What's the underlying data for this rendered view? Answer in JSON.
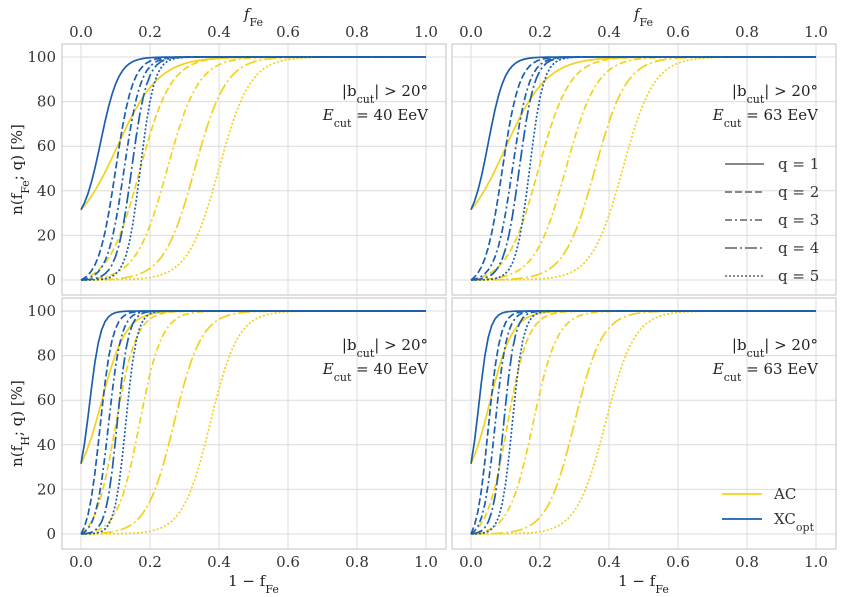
{
  "chart_data": {
    "type": "line",
    "x_label_bottom": "1 − f_Fe",
    "x_label_top": "f_Fe",
    "xlim": [
      0,
      1
    ],
    "ylim": [
      0,
      100
    ],
    "x_ticks": [
      "0.0",
      "0.2",
      "0.4",
      "0.6",
      "0.8",
      "1.0"
    ],
    "y_ticks": [
      "0",
      "20",
      "40",
      "60",
      "80",
      "100"
    ],
    "colors": {
      "AC": "#f2d21b",
      "XC_opt": "#1c5fad"
    },
    "line_styles": {
      "1": "solid",
      "2": "dashed",
      "3": "dashdot",
      "4": "longdashdot",
      "5": "dotted"
    },
    "legend_q": [
      "q = 1",
      "q = 2",
      "q = 3",
      "q = 4",
      "q = 5"
    ],
    "legend_methods": [
      "AC",
      "XC_opt"
    ],
    "panels": [
      {
        "position": "top-left",
        "ylabel": "n(f_Fe; q) [%]",
        "annotation": [
          "|b_cut| > 20°",
          "E_cut = 40 EeV"
        ],
        "series": [
          {
            "method": "XC_opt",
            "q": 1,
            "x50": 0.057,
            "width": 0.026,
            "y0": 31.5
          },
          {
            "method": "XC_opt",
            "q": 2,
            "x50": 0.1,
            "width": 0.025
          },
          {
            "method": "XC_opt",
            "q": 3,
            "x50": 0.125,
            "width": 0.024
          },
          {
            "method": "XC_opt",
            "q": 4,
            "x50": 0.147,
            "width": 0.022
          },
          {
            "method": "XC_opt",
            "q": 5,
            "x50": 0.172,
            "width": 0.02
          },
          {
            "method": "AC",
            "q": 1,
            "x50": 0.105,
            "width": 0.06,
            "y0": 31.5
          },
          {
            "method": "AC",
            "q": 2,
            "x50": 0.17,
            "width": 0.045
          },
          {
            "method": "AC",
            "q": 3,
            "x50": 0.25,
            "width": 0.045
          },
          {
            "method": "AC",
            "q": 4,
            "x50": 0.33,
            "width": 0.045
          },
          {
            "method": "AC",
            "q": 5,
            "x50": 0.4,
            "width": 0.045
          }
        ]
      },
      {
        "position": "top-right",
        "ylabel": "",
        "annotation": [
          "|b_cut| > 20°",
          "E_cut = 63 EeV"
        ],
        "series": [
          {
            "method": "XC_opt",
            "q": 1,
            "x50": 0.05,
            "width": 0.024,
            "y0": 31.5
          },
          {
            "method": "XC_opt",
            "q": 2,
            "x50": 0.09,
            "width": 0.025
          },
          {
            "method": "XC_opt",
            "q": 3,
            "x50": 0.12,
            "width": 0.024
          },
          {
            "method": "XC_opt",
            "q": 4,
            "x50": 0.14,
            "width": 0.022
          },
          {
            "method": "XC_opt",
            "q": 5,
            "x50": 0.17,
            "width": 0.02
          },
          {
            "method": "AC",
            "q": 1,
            "x50": 0.1,
            "width": 0.06,
            "y0": 31.5
          },
          {
            "method": "AC",
            "q": 2,
            "x50": 0.195,
            "width": 0.045
          },
          {
            "method": "AC",
            "q": 3,
            "x50": 0.275,
            "width": 0.045
          },
          {
            "method": "AC",
            "q": 4,
            "x50": 0.36,
            "width": 0.045
          },
          {
            "method": "AC",
            "q": 5,
            "x50": 0.44,
            "width": 0.045
          }
        ]
      },
      {
        "position": "bottom-left",
        "ylabel": "n(f_H; q) [%]",
        "annotation": [
          "|b_cut| > 20°",
          "E_cut = 40 EeV"
        ],
        "series": [
          {
            "method": "XC_opt",
            "q": 1,
            "x50": 0.025,
            "width": 0.016,
            "y0": 31.5
          },
          {
            "method": "XC_opt",
            "q": 2,
            "x50": 0.055,
            "width": 0.018
          },
          {
            "method": "XC_opt",
            "q": 3,
            "x50": 0.08,
            "width": 0.018
          },
          {
            "method": "XC_opt",
            "q": 4,
            "x50": 0.105,
            "width": 0.016
          },
          {
            "method": "XC_opt",
            "q": 5,
            "x50": 0.13,
            "width": 0.016
          },
          {
            "method": "AC",
            "q": 1,
            "x50": 0.06,
            "width": 0.035,
            "y0": 31.5
          },
          {
            "method": "AC",
            "q": 2,
            "x50": 0.1,
            "width": 0.03
          },
          {
            "method": "AC",
            "q": 3,
            "x50": 0.17,
            "width": 0.032
          },
          {
            "method": "AC",
            "q": 4,
            "x50": 0.27,
            "width": 0.04
          },
          {
            "method": "AC",
            "q": 5,
            "x50": 0.375,
            "width": 0.04
          }
        ]
      },
      {
        "position": "bottom-right",
        "ylabel": "",
        "annotation": [
          "|b_cut| > 20°",
          "E_cut = 63 EeV"
        ],
        "series": [
          {
            "method": "XC_opt",
            "q": 1,
            "x50": 0.023,
            "width": 0.015,
            "y0": 31.5
          },
          {
            "method": "XC_opt",
            "q": 2,
            "x50": 0.05,
            "width": 0.017
          },
          {
            "method": "XC_opt",
            "q": 3,
            "x50": 0.07,
            "width": 0.017
          },
          {
            "method": "XC_opt",
            "q": 4,
            "x50": 0.095,
            "width": 0.016
          },
          {
            "method": "XC_opt",
            "q": 5,
            "x50": 0.12,
            "width": 0.016
          },
          {
            "method": "AC",
            "q": 1,
            "x50": 0.055,
            "width": 0.033,
            "y0": 31.5
          },
          {
            "method": "AC",
            "q": 2,
            "x50": 0.105,
            "width": 0.03
          },
          {
            "method": "AC",
            "q": 3,
            "x50": 0.18,
            "width": 0.035
          },
          {
            "method": "AC",
            "q": 4,
            "x50": 0.3,
            "width": 0.04
          },
          {
            "method": "AC",
            "q": 5,
            "x50": 0.39,
            "width": 0.042
          }
        ]
      }
    ]
  }
}
